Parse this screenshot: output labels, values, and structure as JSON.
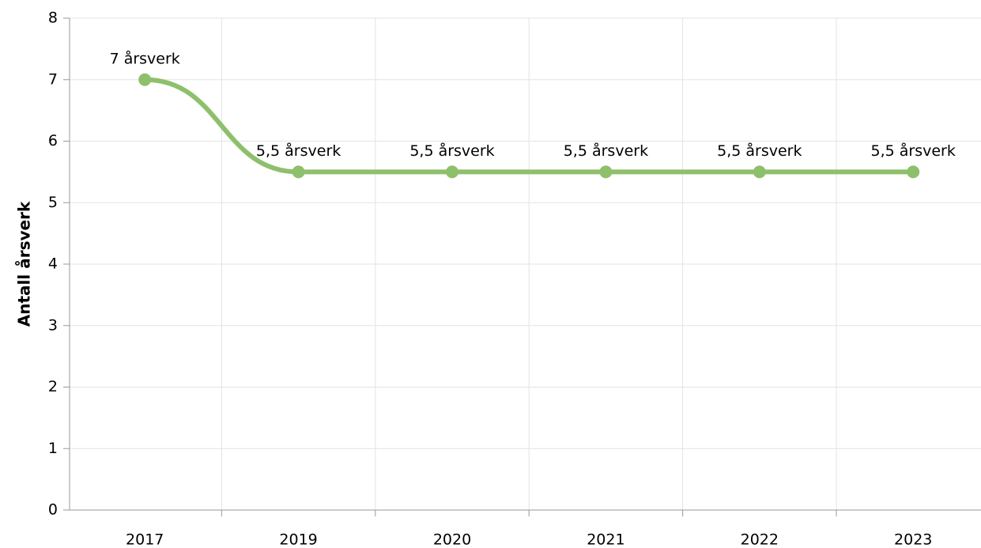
{
  "chart_data": {
    "type": "line",
    "y_label": "Antall årsverk",
    "categories": [
      "2017",
      "2019",
      "2020",
      "2021",
      "2022",
      "2023"
    ],
    "series": [
      {
        "name": "Antall årsverk",
        "color": "#8ec06c",
        "values": [
          7,
          5.5,
          5.5,
          5.5,
          5.5,
          5.5
        ],
        "value_labels": [
          "7 årsverk",
          "5,5 årsverk",
          "5,5 årsverk",
          "5,5 årsverk",
          "5,5 årsverk",
          "5,5 årsverk"
        ]
      }
    ],
    "ylim": [
      0,
      8
    ],
    "yticks": [
      0,
      1,
      2,
      3,
      4,
      5,
      6,
      7,
      8
    ],
    "grid": true
  }
}
